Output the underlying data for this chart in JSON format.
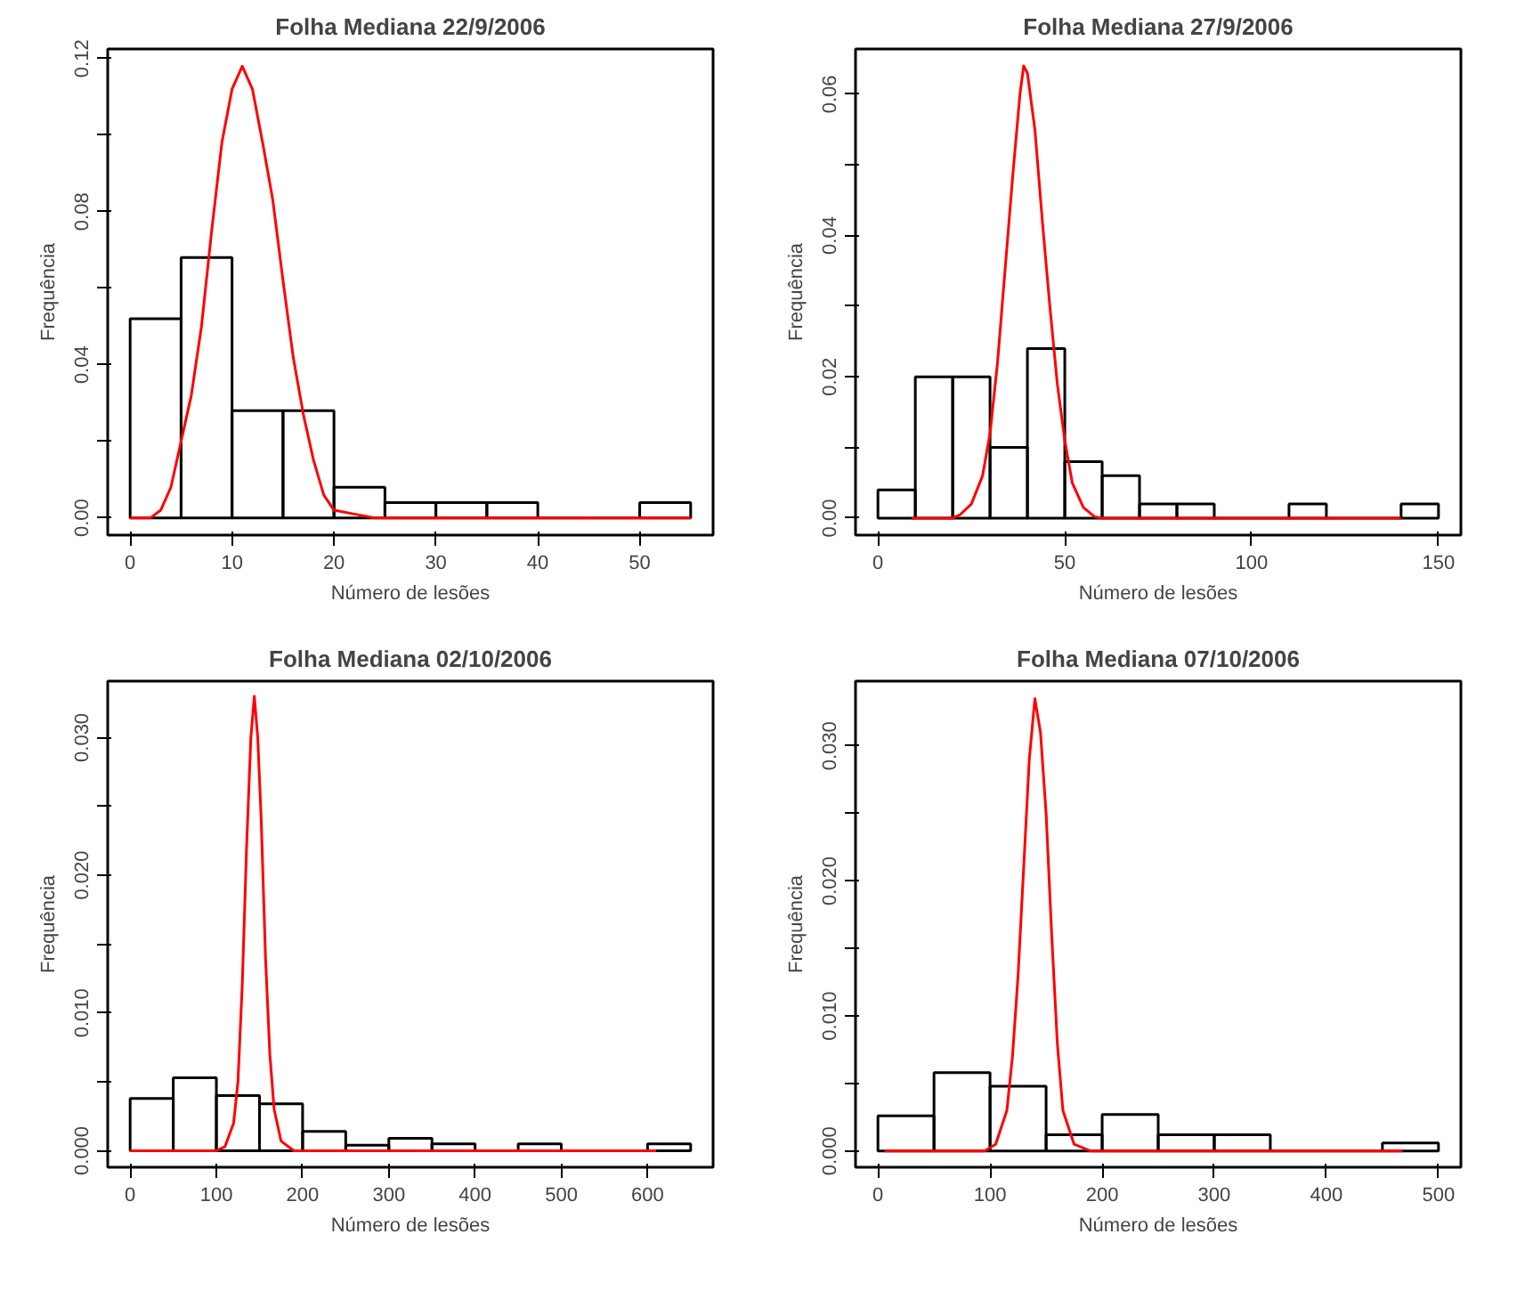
{
  "chart_data": [
    {
      "type": "histogram",
      "title": "Folha Mediana 22/9/2006",
      "xlabel": "Número de lesões",
      "ylabel": "Frequência",
      "color": "#000000",
      "bins": [
        0,
        5,
        10,
        15,
        20,
        25,
        30,
        35,
        40,
        45,
        50,
        55
      ],
      "values": [
        0.052,
        0.068,
        0.028,
        0.028,
        0.008,
        0.004,
        0.004,
        0.004,
        0,
        0,
        0.004
      ],
      "series": [
        {
          "type": "line",
          "color": "#ff0000",
          "x": [
            0,
            2,
            3,
            4,
            5,
            6,
            7,
            8,
            9,
            10,
            11,
            12,
            13,
            14,
            15,
            16,
            17,
            18,
            19,
            20,
            22,
            24,
            55
          ],
          "values": [
            0,
            0,
            0.002,
            0.008,
            0.02,
            0.032,
            0.05,
            0.075,
            0.098,
            0.112,
            0.118,
            0.112,
            0.098,
            0.083,
            0.062,
            0.042,
            0.027,
            0.015,
            0.006,
            0.002,
            0.001,
            0,
            0
          ]
        }
      ],
      "xlim": [
        -2.2,
        57.2
      ],
      "ylim": [
        -0.0045,
        0.1225
      ],
      "xticks": [
        0,
        10,
        20,
        30,
        40,
        50
      ],
      "yticks": [
        {
          "value": 0,
          "label": "0.00"
        },
        {
          "value": 0.02,
          "label": null
        },
        {
          "value": 0.04,
          "label": "0.04"
        },
        {
          "value": 0.06,
          "label": null
        },
        {
          "value": 0.08,
          "label": "0.08"
        },
        {
          "value": 0.1,
          "label": null
        },
        {
          "value": 0.12,
          "label": "0.12"
        }
      ]
    },
    {
      "type": "histogram",
      "title": "Folha Mediana 27/9/2006",
      "xlabel": "Número de lesões",
      "ylabel": "Frequência",
      "color": "#000000",
      "bins": [
        0,
        10,
        20,
        30,
        40,
        50,
        60,
        70,
        80,
        90,
        100,
        110,
        120,
        130,
        140,
        150
      ],
      "values": [
        0.004,
        0.02,
        0.02,
        0.01,
        0.024,
        0.008,
        0.006,
        0.002,
        0.002,
        0,
        0,
        0.002,
        0,
        0,
        0.002
      ],
      "series": [
        {
          "type": "line",
          "color": "#ff0000",
          "x": [
            9,
            20,
            22,
            25,
            28,
            30,
            32,
            34,
            36,
            38,
            39,
            40,
            42,
            44,
            46,
            48,
            50,
            52,
            55,
            58,
            60,
            140
          ],
          "values": [
            0,
            0,
            0.0005,
            0.002,
            0.006,
            0.012,
            0.022,
            0.035,
            0.048,
            0.06,
            0.064,
            0.063,
            0.055,
            0.042,
            0.03,
            0.019,
            0.011,
            0.005,
            0.0015,
            0.0002,
            0,
            0
          ]
        }
      ],
      "xlim": [
        -6,
        156
      ],
      "ylim": [
        -0.0024,
        0.0664
      ],
      "xticks": [
        0,
        50,
        100,
        150
      ],
      "yticks": [
        {
          "value": 0,
          "label": "0.00"
        },
        {
          "value": 0.01,
          "label": null
        },
        {
          "value": 0.02,
          "label": "0.02"
        },
        {
          "value": 0.03,
          "label": null
        },
        {
          "value": 0.04,
          "label": "0.04"
        },
        {
          "value": 0.05,
          "label": null
        },
        {
          "value": 0.06,
          "label": "0.06"
        }
      ]
    },
    {
      "type": "histogram",
      "title": "Folha Mediana 02/10/2006",
      "xlabel": "Número de lesões",
      "ylabel": "Frequência",
      "color": "#000000",
      "bins": [
        0,
        50,
        100,
        150,
        200,
        250,
        300,
        350,
        400,
        450,
        500,
        550,
        600,
        650
      ],
      "values": [
        0.0038,
        0.0053,
        0.004,
        0.0034,
        0.0014,
        0.0004,
        0.0009,
        0.0005,
        0,
        0.0005,
        0,
        0,
        0.0005
      ],
      "series": [
        {
          "type": "line",
          "color": "#ff0000",
          "x": [
            0,
            100,
            110,
            120,
            125,
            130,
            135,
            140,
            144,
            148,
            152,
            157,
            162,
            167,
            175,
            190,
            610
          ],
          "values": [
            0,
            0,
            0.0003,
            0.002,
            0.005,
            0.012,
            0.022,
            0.03,
            0.033,
            0.03,
            0.024,
            0.014,
            0.007,
            0.003,
            0.0007,
            0,
            0
          ]
        }
      ],
      "xlim": [
        -26,
        676
      ],
      "ylim": [
        -0.0012,
        0.0341
      ],
      "xticks": [
        0,
        100,
        200,
        300,
        400,
        500,
        600
      ],
      "yticks": [
        {
          "value": 0,
          "label": "0.000"
        },
        {
          "value": 0.005,
          "label": null
        },
        {
          "value": 0.01,
          "label": "0.010"
        },
        {
          "value": 0.015,
          "label": null
        },
        {
          "value": 0.02,
          "label": "0.020"
        },
        {
          "value": 0.025,
          "label": null
        },
        {
          "value": 0.03,
          "label": "0.030"
        }
      ]
    },
    {
      "type": "histogram",
      "title": "Folha Mediana 07/10/2006",
      "xlabel": "Número de lesões",
      "ylabel": "Frequência",
      "color": "#000000",
      "bins": [
        0,
        50,
        100,
        150,
        200,
        250,
        300,
        350,
        400,
        450,
        500
      ],
      "values": [
        0.0026,
        0.0058,
        0.0048,
        0.0012,
        0.0027,
        0.0012,
        0.0012,
        0,
        0,
        0.0006
      ],
      "series": [
        {
          "type": "line",
          "color": "#ff0000",
          "x": [
            6,
            95,
            105,
            115,
            120,
            125,
            130,
            135,
            140,
            145,
            150,
            155,
            160,
            165,
            175,
            190,
            468
          ],
          "values": [
            0,
            0,
            0.0005,
            0.003,
            0.007,
            0.013,
            0.021,
            0.029,
            0.0335,
            0.031,
            0.025,
            0.016,
            0.008,
            0.003,
            0.0005,
            0,
            0
          ]
        }
      ],
      "xlim": [
        -20,
        520
      ],
      "ylim": [
        -0.0012,
        0.0348
      ],
      "xticks": [
        0,
        100,
        200,
        300,
        400,
        500
      ],
      "yticks": [
        {
          "value": 0,
          "label": "0.000"
        },
        {
          "value": 0.005,
          "label": null
        },
        {
          "value": 0.01,
          "label": "0.010"
        },
        {
          "value": 0.015,
          "label": null
        },
        {
          "value": 0.02,
          "label": "0.020"
        },
        {
          "value": 0.025,
          "label": null
        },
        {
          "value": 0.03,
          "label": "0.030"
        }
      ]
    }
  ]
}
